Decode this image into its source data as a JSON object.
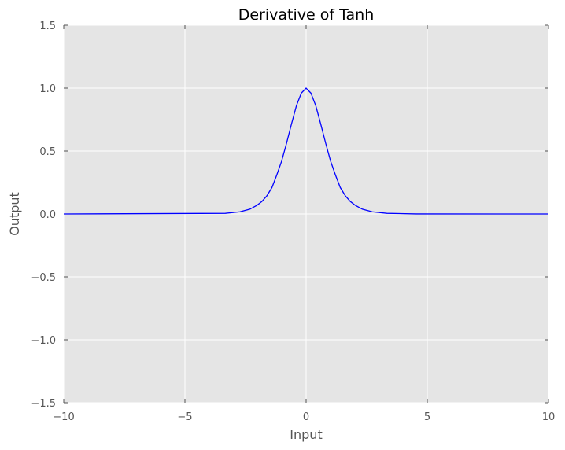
{
  "chart_data": {
    "type": "line",
    "title": "Derivative of Tanh",
    "xlabel": "Input",
    "ylabel": "Output",
    "xlim": [
      -10,
      10
    ],
    "ylim": [
      -1.5,
      1.5
    ],
    "xticks": [
      -10,
      -5,
      0,
      5,
      10
    ],
    "xtick_labels": [
      "−10",
      "−5",
      "0",
      "5",
      "10"
    ],
    "yticks": [
      -1.5,
      -1.0,
      -0.5,
      0.0,
      0.5,
      1.0,
      1.5
    ],
    "ytick_labels": [
      "−1.5",
      "−1.0",
      "−0.5",
      "0.0",
      "0.5",
      "1.0",
      "1.5"
    ],
    "grid": true,
    "background_color": "#e5e5e5",
    "grid_color": "#ffffff",
    "series": [
      {
        "color": "#0000ff",
        "x": [
          -10,
          -3.33,
          -2.73,
          -2.32,
          -2.02,
          -1.82,
          -1.62,
          -1.41,
          -1.21,
          -1.01,
          -0.81,
          -0.61,
          -0.4,
          -0.2,
          0,
          0.2,
          0.4,
          0.61,
          0.81,
          1.01,
          1.21,
          1.41,
          1.62,
          1.82,
          2.02,
          2.32,
          2.73,
          3.33,
          4.55,
          10
        ],
        "y": [
          0.0,
          0.005,
          0.017,
          0.038,
          0.07,
          0.1,
          0.144,
          0.21,
          0.31,
          0.42,
          0.56,
          0.71,
          0.86,
          0.96,
          1.0,
          0.96,
          0.86,
          0.71,
          0.56,
          0.42,
          0.31,
          0.21,
          0.144,
          0.1,
          0.07,
          0.038,
          0.017,
          0.005,
          0.0005,
          0.0
        ]
      }
    ]
  }
}
